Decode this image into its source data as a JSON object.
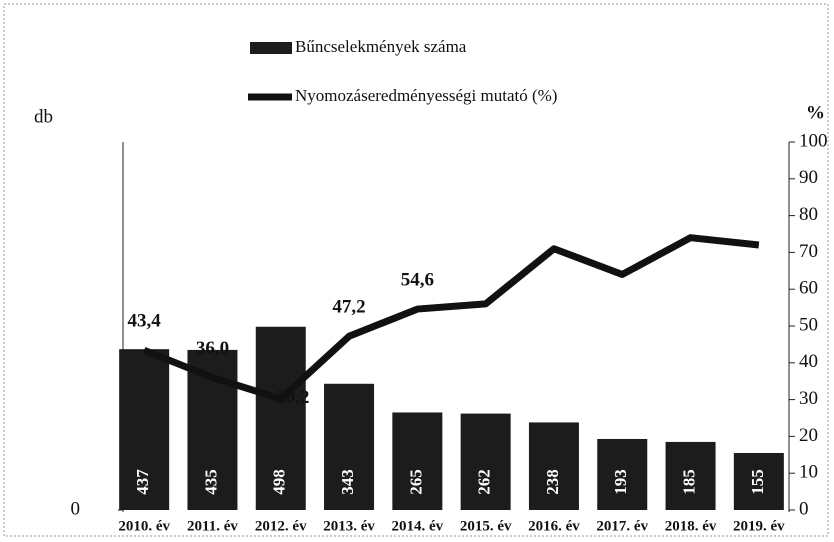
{
  "chart_data": {
    "type": "bar-line",
    "categories": [
      "2010. év",
      "2011. év",
      "2012. év",
      "2013. év",
      "2014. év",
      "2015. év",
      "2016. év",
      "2017. év",
      "2018. év",
      "2019. év"
    ],
    "ylabel": "db",
    "y2label": "%",
    "ylim": [
      0,
      1000
    ],
    "yticks": [
      0
    ],
    "y2lim": [
      0,
      100
    ],
    "y2ticks": [
      0,
      10,
      20,
      30,
      40,
      50,
      60,
      70,
      80,
      90,
      100
    ],
    "series": [
      {
        "name": "Bűncselekmények száma",
        "type": "bar",
        "color": "#1c1c1c",
        "values": [
          437,
          435,
          498,
          343,
          265,
          262,
          238,
          193,
          185,
          155
        ]
      },
      {
        "name": "Nyomozáseredményességi mutató (%)",
        "type": "line",
        "axis": "y2",
        "color": "#111111",
        "values": [
          43.4,
          36.0,
          30.2,
          47.2,
          54.6,
          56,
          71,
          64,
          74,
          72
        ],
        "value_labels": [
          "43,4",
          "36,0",
          "30,2",
          "47,2",
          "54,6",
          null,
          null,
          null,
          null,
          null
        ]
      }
    ]
  }
}
